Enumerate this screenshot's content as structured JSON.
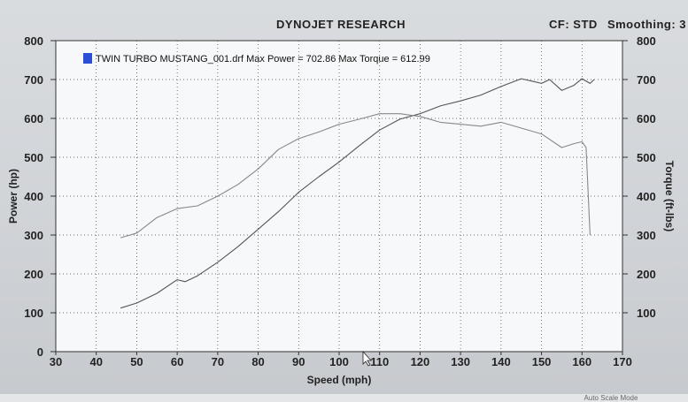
{
  "window": {
    "title": "DYNOJET RESEARCH",
    "cf_label": "CF: STD",
    "smoothing_label": "Smoothing: 3",
    "status_text": "Auto Scale Mode"
  },
  "chart_data": {
    "type": "line",
    "legend": "TWIN TURBO MUSTANG_001.drf Max Power = 702.86 Max Torque = 612.99",
    "xlabel": "Speed (mph)",
    "ylabel": "Power (hp)",
    "y2label": "Torque (ft-lbs)",
    "xlim": [
      30,
      170
    ],
    "ylim": [
      0,
      800
    ],
    "y2lim": [
      0,
      800
    ],
    "x_ticks": [
      30,
      40,
      50,
      60,
      70,
      80,
      90,
      100,
      110,
      120,
      130,
      140,
      150,
      160,
      170
    ],
    "y_ticks": [
      0,
      100,
      200,
      300,
      400,
      500,
      600,
      700,
      800
    ],
    "y2_ticks": [
      100,
      200,
      300,
      400,
      500,
      600,
      700,
      800
    ],
    "grid": true,
    "series": [
      {
        "name": "Power",
        "color": "#555555",
        "x": [
          46,
          50,
          55,
          60,
          62,
          65,
          70,
          75,
          80,
          85,
          90,
          95,
          100,
          105,
          110,
          115,
          120,
          125,
          130,
          135,
          140,
          145,
          148,
          150,
          152,
          155,
          158,
          160,
          162,
          163
        ],
        "y": [
          112,
          125,
          150,
          185,
          180,
          195,
          230,
          270,
          315,
          360,
          410,
          450,
          488,
          530,
          570,
          598,
          612,
          632,
          645,
          660,
          682,
          702,
          695,
          690,
          700,
          672,
          685,
          702,
          690,
          700
        ]
      },
      {
        "name": "Torque",
        "color": "#888888",
        "x": [
          46,
          50,
          55,
          60,
          65,
          70,
          75,
          80,
          85,
          90,
          95,
          100,
          105,
          110,
          115,
          120,
          125,
          130,
          135,
          140,
          145,
          150,
          155,
          158,
          160,
          161,
          162
        ],
        "y": [
          293,
          305,
          345,
          368,
          375,
          400,
          430,
          470,
          520,
          548,
          565,
          585,
          598,
          612,
          612,
          605,
          590,
          585,
          580,
          590,
          575,
          560,
          525,
          535,
          540,
          525,
          300
        ]
      }
    ]
  }
}
